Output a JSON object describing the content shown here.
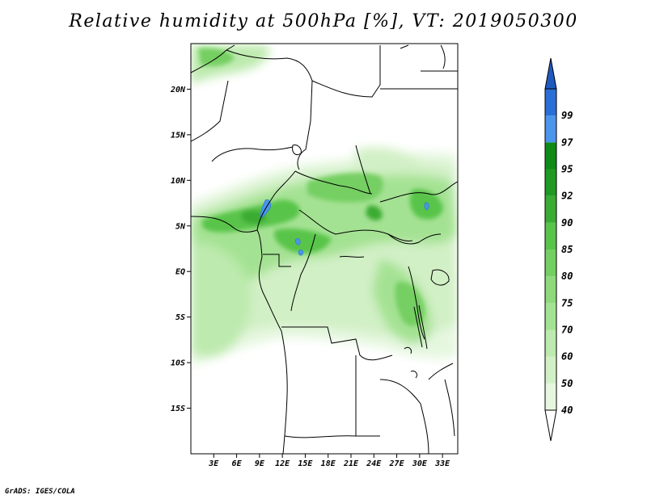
{
  "title": "Relative humidity at 500hPa [%], VT: 2019050300",
  "credit": "GrADS: IGES/COLA",
  "map": {
    "projection": "latlon",
    "lon_range": [
      0,
      35
    ],
    "lat_range": [
      -20,
      25
    ],
    "lat_ticks": [
      {
        "value": 20,
        "label": "20N"
      },
      {
        "value": 15,
        "label": "15N"
      },
      {
        "value": 10,
        "label": "10N"
      },
      {
        "value": 5,
        "label": "5N"
      },
      {
        "value": 0,
        "label": "EQ"
      },
      {
        "value": -5,
        "label": "5S"
      },
      {
        "value": -10,
        "label": "10S"
      },
      {
        "value": -15,
        "label": "15S"
      }
    ],
    "lon_ticks": [
      {
        "value": 3,
        "label": "3E"
      },
      {
        "value": 6,
        "label": "6E"
      },
      {
        "value": 9,
        "label": "9E"
      },
      {
        "value": 12,
        "label": "12E"
      },
      {
        "value": 15,
        "label": "15E"
      },
      {
        "value": 18,
        "label": "18E"
      },
      {
        "value": 21,
        "label": "21E"
      },
      {
        "value": 24,
        "label": "24E"
      },
      {
        "value": 27,
        "label": "27E"
      },
      {
        "value": 30,
        "label": "30E"
      },
      {
        "value": 33,
        "label": "33E"
      }
    ]
  },
  "colorbar": {
    "levels": [
      {
        "label": "40",
        "color": "#e6f7e0"
      },
      {
        "label": "50",
        "color": "#d2f0c6"
      },
      {
        "label": "60",
        "color": "#bdeaae"
      },
      {
        "label": "70",
        "color": "#a4e293"
      },
      {
        "label": "75",
        "color": "#8ed97c"
      },
      {
        "label": "80",
        "color": "#74cf62"
      },
      {
        "label": "85",
        "color": "#58c44a"
      },
      {
        "label": "90",
        "color": "#3aab33"
      },
      {
        "label": "92",
        "color": "#209a22"
      },
      {
        "label": "95",
        "color": "#0f8a16"
      },
      {
        "label": "97",
        "color": "#4b95ea"
      },
      {
        "label": "99",
        "color": "#2a6fd6"
      }
    ],
    "below_color": "#ffffff",
    "above_color": "#1f5bbf"
  }
}
